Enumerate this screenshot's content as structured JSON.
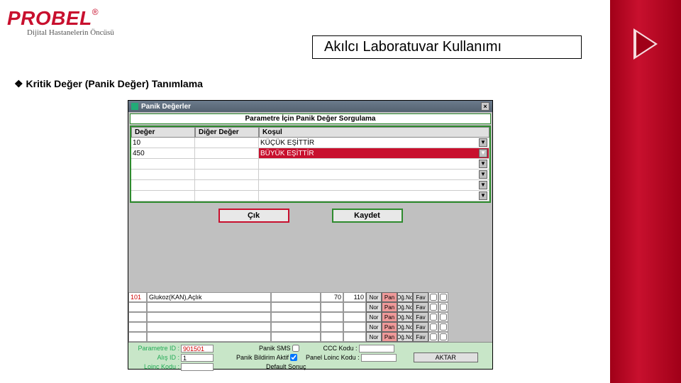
{
  "logo": {
    "name": "PROBEL",
    "reg": "®",
    "tagline": "Dijital Hastanelerin Öncüsü"
  },
  "slide_title": "Akılcı Laboratuvar Kullanımı",
  "section_heading": "Kritik Değer (Panik Değer) Tanımlama",
  "window": {
    "title": "Panik Değerler",
    "panel_title": "Parametre İçin Panik Değer Sorgulama",
    "columns": {
      "deger": "Değer",
      "diger": "Diğer Değer",
      "kosul": "Koşul"
    },
    "rows": [
      {
        "deger": "10",
        "diger": "",
        "kosul": "KÜÇÜK EŞİTTİR",
        "kosul_red": false
      },
      {
        "deger": "450",
        "diger": "",
        "kosul": "BÜYÜK EŞİTTİR",
        "kosul_red": true
      },
      {
        "deger": "",
        "diger": "",
        "kosul": "",
        "kosul_red": false
      },
      {
        "deger": "",
        "diger": "",
        "kosul": "",
        "kosul_red": false
      },
      {
        "deger": "",
        "diger": "",
        "kosul": "",
        "kosul_red": false
      },
      {
        "deger": "",
        "diger": "",
        "kosul": "",
        "kosul_red": false
      }
    ],
    "buttons": {
      "exit": "Çık",
      "save": "Kaydet"
    }
  },
  "param_table": {
    "rows": [
      {
        "code": "101",
        "name": "Glukoz(KAN),Açlık",
        "v1": "70",
        "v2": "110"
      },
      {
        "code": "",
        "name": "",
        "v1": "",
        "v2": ""
      },
      {
        "code": "",
        "name": "",
        "v1": "",
        "v2": ""
      },
      {
        "code": "",
        "name": "",
        "v1": "",
        "v2": ""
      },
      {
        "code": "",
        "name": "",
        "v1": "",
        "v2": ""
      }
    ],
    "rb": {
      "b1": "Nor",
      "b2": "Pan",
      "b3": "Dğ.No",
      "b4": "Fav"
    }
  },
  "footer": {
    "labels": {
      "param_id": "Parametre ID :",
      "alis_id": "Alış ID :",
      "loinc": "Loinc Kodu :",
      "panik_sms": "Panik SMS",
      "panik_bildirim": "Panik Bildirim Aktif",
      "ccc": "CCC Kodu :",
      "panel_loinc": "Panel Loinc Kodu :",
      "default": "Default Sonuç",
      "aktar": "AKTAR"
    },
    "values": {
      "param_id": "901501",
      "alis_id": "1",
      "panik_bildirim_checked": true
    }
  },
  "colors": {
    "brand_red": "#c8102e",
    "panel_green": "#2e8b2e",
    "foot_green": "#c8e6c8"
  }
}
